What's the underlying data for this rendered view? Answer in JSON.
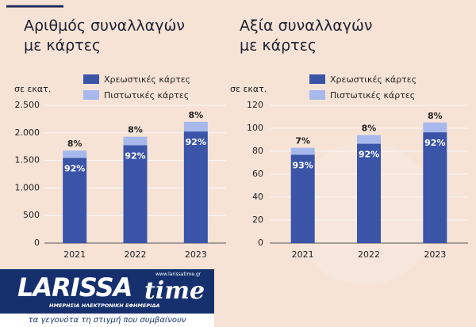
{
  "chart_data": [
    {
      "type": "stacked_bar",
      "title": [
        "Αριθμός συναλλαγών",
        "με κάρτες"
      ],
      "unit_label": "σε εκατ.",
      "categories": [
        "2021",
        "2022",
        "2023"
      ],
      "series": [
        {
          "name": "Χρεωστικές κάρτες",
          "color": "#3a54a8",
          "values": [
            1545,
            1775,
            2025
          ],
          "percent_labels": [
            "92%",
            "92%",
            "92%"
          ]
        },
        {
          "name": "Πιστωτικές κάρτες",
          "color": "#a6b8ec",
          "values": [
            135,
            155,
            175
          ],
          "percent_labels": [
            "8%",
            "8%",
            "8%"
          ]
        }
      ],
      "ylim": [
        0,
        2500
      ],
      "yticks": [
        0,
        500,
        {
          "value": 1000,
          "label": "1.000"
        },
        {
          "value": 1500,
          "label": "1.500"
        },
        {
          "value": 2000,
          "label": "2.000"
        },
        {
          "value": 2500,
          "label": "2.500"
        }
      ],
      "grid": true
    },
    {
      "type": "stacked_bar",
      "title": [
        "Αξία συναλλαγών",
        "με κάρτες"
      ],
      "unit_label": "σε εκατ.",
      "categories": [
        "2021",
        "2022",
        "2023"
      ],
      "series": [
        {
          "name": "Χρεωστικές κάρτες",
          "color": "#3a54a8",
          "values": [
            77,
            86.5,
            96.5
          ],
          "percent_labels": [
            "93%",
            "92%",
            "92%"
          ]
        },
        {
          "name": "Πιστωτικές κάρτες",
          "color": "#a6b8ec",
          "values": [
            6,
            7.5,
            8.5
          ],
          "percent_labels": [
            "7%",
            "8%",
            "8%"
          ]
        }
      ],
      "ylim": [
        0,
        120
      ],
      "yticks": [
        0,
        20,
        40,
        60,
        80,
        100,
        120
      ],
      "grid": true
    }
  ],
  "watermark": {
    "name_part1": "LARISSA",
    "name_part2": "time",
    "url": "www.larissatime.gr",
    "subtitle": "ΗΜΕΡΗΣΙΑ ΗΛΕΚΤΡΟΝΙΚΗ ΕΦΗΜΕΡΙΔΑ",
    "slogan": "τα γεγονότα τη στιγμή που συμβαίνουν"
  }
}
